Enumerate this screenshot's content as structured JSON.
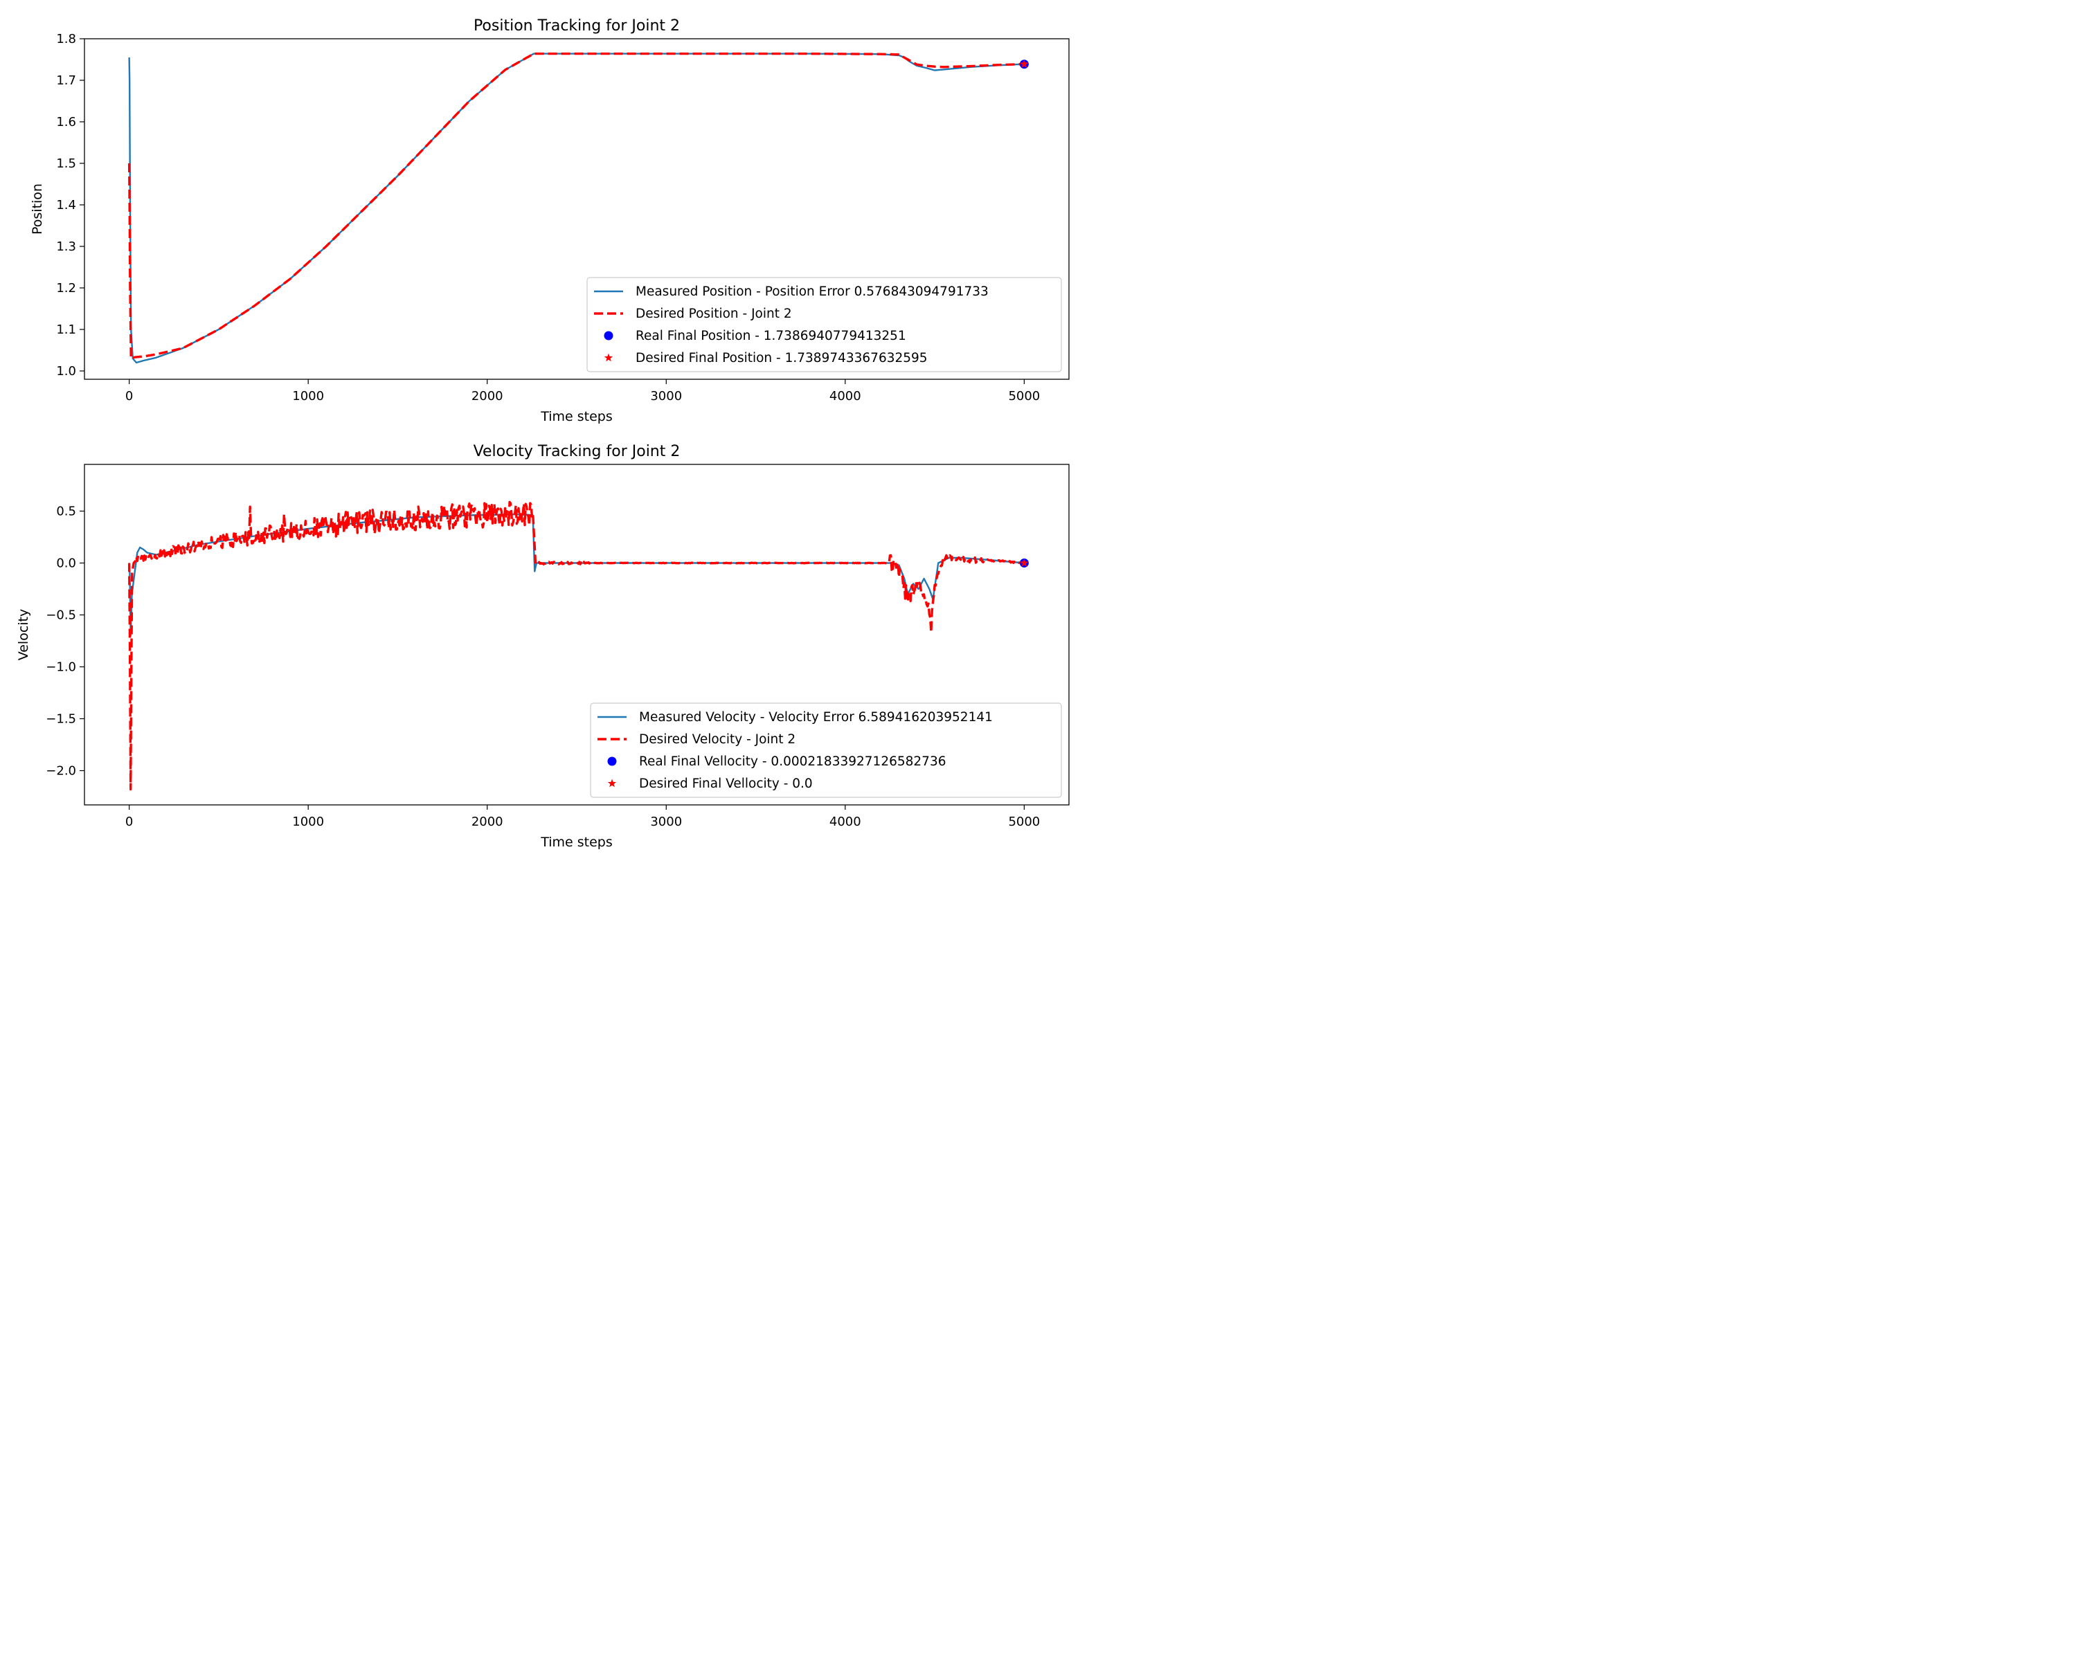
{
  "chart_data": [
    {
      "type": "line",
      "title": "Position Tracking for Joint 2",
      "xlabel": "Time steps",
      "ylabel": "Position",
      "xlim": [
        -250,
        5250
      ],
      "ylim": [
        0.98,
        1.8
      ],
      "xticks": [
        0,
        1000,
        2000,
        3000,
        4000,
        5000
      ],
      "yticks": [
        1.0,
        1.1,
        1.2,
        1.3,
        1.4,
        1.5,
        1.6,
        1.7,
        1.8
      ],
      "ytick_labels": [
        "1.0",
        "1.1",
        "1.2",
        "1.3",
        "1.4",
        "1.5",
        "1.6",
        "1.7",
        "1.8"
      ],
      "legend_position": "lower-right",
      "series": [
        {
          "name": "Measured Position - Position Error 0.576843094791733",
          "style": "solid",
          "color": "#1f77b4",
          "x": [
            0,
            2,
            5,
            10,
            20,
            40,
            80,
            150,
            300,
            500,
            700,
            900,
            1100,
            1300,
            1500,
            1700,
            1900,
            2100,
            2260,
            2300,
            2600,
            3000,
            3400,
            3800,
            4200,
            4300,
            4330,
            4360,
            4400,
            4450,
            4500,
            4550,
            4700,
            4850,
            5000
          ],
          "y": [
            1.755,
            1.7,
            1.4,
            1.1,
            1.03,
            1.02,
            1.025,
            1.032,
            1.055,
            1.1,
            1.157,
            1.222,
            1.3,
            1.385,
            1.47,
            1.56,
            1.65,
            1.725,
            1.764,
            1.764,
            1.764,
            1.764,
            1.764,
            1.764,
            1.763,
            1.76,
            1.755,
            1.745,
            1.735,
            1.73,
            1.724,
            1.726,
            1.732,
            1.736,
            1.739
          ]
        },
        {
          "name": "Desired Position - Joint 2",
          "style": "dashed",
          "color": "#ff0000",
          "x": [
            0,
            2,
            5,
            10,
            30,
            80,
            150,
            300,
            500,
            700,
            900,
            1100,
            1300,
            1500,
            1700,
            1900,
            2100,
            2260,
            2300,
            2600,
            3000,
            3400,
            3800,
            4200,
            4300,
            4350,
            4400,
            4450,
            4500,
            4550,
            4700,
            4850,
            5000
          ],
          "y": [
            1.5,
            1.4,
            1.2,
            1.03,
            1.033,
            1.035,
            1.04,
            1.055,
            1.1,
            1.157,
            1.222,
            1.3,
            1.385,
            1.47,
            1.56,
            1.65,
            1.725,
            1.764,
            1.764,
            1.764,
            1.764,
            1.764,
            1.764,
            1.763,
            1.762,
            1.75,
            1.738,
            1.735,
            1.733,
            1.732,
            1.734,
            1.737,
            1.739
          ]
        }
      ],
      "markers": [
        {
          "name": "Real Final Position - 1.7386940779413251",
          "shape": "circle",
          "color": "#0000ff",
          "x": 5000,
          "y": 1.7386940779413251
        },
        {
          "name": "Desired Final Position - 1.7389743367632595",
          "shape": "star",
          "color": "#ff0000",
          "x": 5000,
          "y": 1.7389743367632595
        }
      ]
    },
    {
      "type": "line",
      "title": "Velocity Tracking for Joint 2",
      "xlabel": "Time steps",
      "ylabel": "Velocity",
      "xlim": [
        -250,
        5250
      ],
      "ylim": [
        -2.33,
        0.95
      ],
      "xticks": [
        0,
        1000,
        2000,
        3000,
        4000,
        5000
      ],
      "yticks": [
        -2.0,
        -1.5,
        -1.0,
        -0.5,
        0.0,
        0.5
      ],
      "ytick_labels": [
        "−2.0",
        "−1.5",
        "−1.0",
        "−0.5",
        "0.0",
        "0.5"
      ],
      "legend_position": "lower-right",
      "series": [
        {
          "name": "Measured Velocity - Velocity Error 6.589416203952141",
          "style": "solid",
          "color": "#1f77b4",
          "x": [
            0,
            3,
            8,
            15,
            30,
            45,
            60,
            80,
            100,
            150,
            200,
            400,
            700,
            1000,
            1300,
            1600,
            1900,
            2200,
            2255,
            2265,
            2275,
            2300,
            2500,
            3000,
            3500,
            4000,
            4250,
            4300,
            4330,
            4350,
            4380,
            4410,
            4440,
            4470,
            4490,
            4520,
            4580,
            4650,
            4800,
            5000
          ],
          "y": [
            0,
            -0.1,
            -0.7,
            -0.3,
            -0.1,
            0.1,
            0.15,
            0.13,
            0.1,
            0.08,
            0.1,
            0.18,
            0.26,
            0.33,
            0.39,
            0.44,
            0.46,
            0.47,
            0.46,
            -0.08,
            0.0,
            0.0,
            0.0,
            0.0,
            0.0,
            0.0,
            0.0,
            -0.02,
            -0.15,
            -0.3,
            -0.2,
            -0.25,
            -0.15,
            -0.25,
            -0.35,
            0.0,
            0.05,
            0.05,
            0.03,
            0.0
          ]
        },
        {
          "name": "Desired Velocity - Joint 2",
          "style": "dashed",
          "color": "#ff0000",
          "noise": true,
          "x": [
            0,
            4,
            8,
            12,
            16,
            25,
            40,
            60,
            100,
            200,
            400,
            700,
            1000,
            1300,
            1600,
            1900,
            2150,
            2255,
            2270,
            2300,
            4250,
            4300,
            4350,
            4400,
            4450,
            4480,
            4500,
            4550,
            4600,
            4700,
            4850,
            5000
          ],
          "y": [
            0,
            -0.9,
            -2.18,
            -1.0,
            -0.1,
            0.0,
            0.03,
            0.05,
            0.06,
            0.1,
            0.17,
            0.26,
            0.33,
            0.39,
            0.43,
            0.46,
            0.47,
            0.46,
            0.0,
            0.0,
            0.0,
            -0.05,
            -0.35,
            -0.2,
            -0.3,
            -0.6,
            -0.2,
            0.05,
            0.05,
            0.03,
            0.02,
            0.0
          ]
        }
      ],
      "markers": [
        {
          "name": "Real Final Vellocity - 0.00021833927126582736",
          "shape": "circle",
          "color": "#0000ff",
          "x": 5000,
          "y": 0.00021833927126582736
        },
        {
          "name": "Desired Final Vellocity - 0.0",
          "shape": "star",
          "color": "#ff0000",
          "x": 5000,
          "y": 0.0
        }
      ]
    }
  ]
}
